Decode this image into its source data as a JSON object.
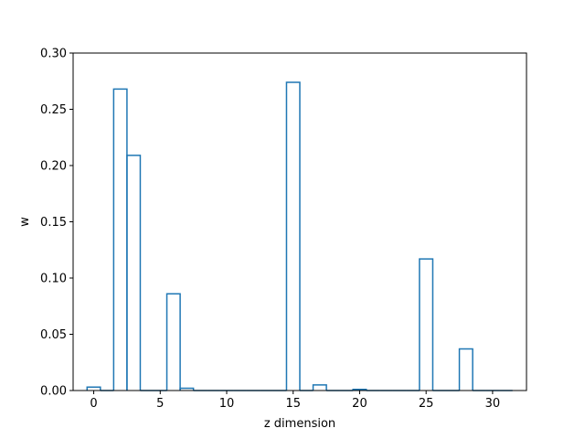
{
  "chart_data": {
    "type": "bar",
    "style": "stepped-outline",
    "title": "",
    "xlabel": "z dimension",
    "ylabel": "w",
    "x": [
      0,
      1,
      2,
      3,
      4,
      5,
      6,
      7,
      8,
      9,
      10,
      11,
      12,
      13,
      14,
      15,
      16,
      17,
      18,
      19,
      20,
      21,
      22,
      23,
      24,
      25,
      26,
      27,
      28,
      29,
      30,
      31
    ],
    "values": [
      0.003,
      0.0,
      0.268,
      0.209,
      0.0,
      0.0,
      0.086,
      0.002,
      0.0,
      0.0,
      0.0,
      0.0,
      0.0,
      0.0,
      0.0,
      0.274,
      0.0,
      0.005,
      0.0,
      0.0,
      0.001,
      0.0,
      0.0,
      0.0,
      0.0,
      0.117,
      0.0,
      0.0,
      0.037,
      0.0,
      0.0,
      0.0
    ],
    "xlim": [
      -1.55,
      32.55
    ],
    "ylim": [
      0,
      0.3
    ],
    "xticks": [
      0,
      5,
      10,
      15,
      20,
      25,
      30
    ],
    "xtick_labels": [
      "0",
      "5",
      "10",
      "15",
      "20",
      "25",
      "30"
    ],
    "yticks": [
      0,
      0.05,
      0.1,
      0.15,
      0.2,
      0.25,
      0.3
    ],
    "ytick_labels": [
      "0.00",
      "0.05",
      "0.10",
      "0.15",
      "0.20",
      "0.25",
      "0.30"
    ],
    "grid": false,
    "legend": "none",
    "bar_color": "#1f77b4"
  }
}
